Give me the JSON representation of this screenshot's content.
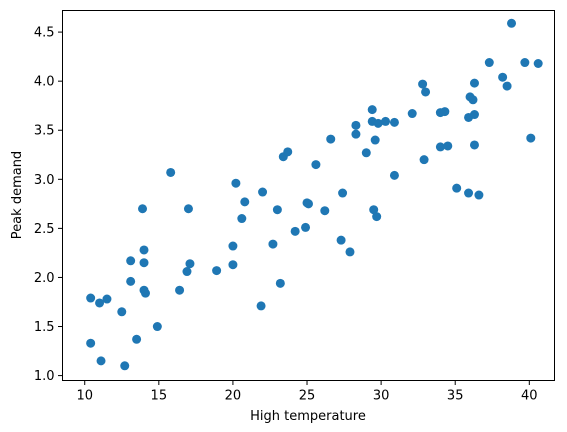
{
  "chart_data": {
    "type": "scatter",
    "title": "",
    "xlabel": "High temperature",
    "ylabel": "Peak demand",
    "xlim": [
      8.5,
      41.7
    ],
    "ylim": [
      0.95,
      4.72
    ],
    "xticks": [
      10,
      15,
      20,
      25,
      30,
      35,
      40
    ],
    "yticks": [
      1.0,
      1.5,
      2.0,
      2.5,
      3.0,
      3.5,
      4.0,
      4.5
    ],
    "xtick_labels": [
      "10",
      "15",
      "20",
      "25",
      "30",
      "35",
      "40"
    ],
    "ytick_labels": [
      "1.0",
      "1.5",
      "2.0",
      "2.5",
      "3.0",
      "3.5",
      "4.0",
      "4.5"
    ],
    "grid": false,
    "marker_color": "#1f77b4",
    "series": [
      {
        "points": [
          [
            10.4,
            1.79
          ],
          [
            10.4,
            1.33
          ],
          [
            11.0,
            1.74
          ],
          [
            11.1,
            1.15
          ],
          [
            11.5,
            1.78
          ],
          [
            12.5,
            1.65
          ],
          [
            12.7,
            1.1
          ],
          [
            13.1,
            2.17
          ],
          [
            13.1,
            1.96
          ],
          [
            13.5,
            1.37
          ],
          [
            13.9,
            2.7
          ],
          [
            14.0,
            2.28
          ],
          [
            14.0,
            2.15
          ],
          [
            14.0,
            1.87
          ],
          [
            14.1,
            1.84
          ],
          [
            14.9,
            1.5
          ],
          [
            15.8,
            3.07
          ],
          [
            16.4,
            1.87
          ],
          [
            16.9,
            2.06
          ],
          [
            17.0,
            2.7
          ],
          [
            17.1,
            2.14
          ],
          [
            18.9,
            2.07
          ],
          [
            20.0,
            2.32
          ],
          [
            20.0,
            2.13
          ],
          [
            20.2,
            2.96
          ],
          [
            20.6,
            2.6
          ],
          [
            20.8,
            2.77
          ],
          [
            21.9,
            1.71
          ],
          [
            22.0,
            2.87
          ],
          [
            22.7,
            2.34
          ],
          [
            23.0,
            2.69
          ],
          [
            23.2,
            1.94
          ],
          [
            23.4,
            3.23
          ],
          [
            23.7,
            3.28
          ],
          [
            24.2,
            2.47
          ],
          [
            24.9,
            2.51
          ],
          [
            25.0,
            2.76
          ],
          [
            25.1,
            2.75
          ],
          [
            25.6,
            3.15
          ],
          [
            26.2,
            2.68
          ],
          [
            26.6,
            3.41
          ],
          [
            27.3,
            2.38
          ],
          [
            27.4,
            2.86
          ],
          [
            27.9,
            2.26
          ],
          [
            28.3,
            3.55
          ],
          [
            28.3,
            3.46
          ],
          [
            29.0,
            3.27
          ],
          [
            29.4,
            3.71
          ],
          [
            29.4,
            3.59
          ],
          [
            29.5,
            2.69
          ],
          [
            29.6,
            3.4
          ],
          [
            29.7,
            2.62
          ],
          [
            29.8,
            3.57
          ],
          [
            30.3,
            3.59
          ],
          [
            30.9,
            3.58
          ],
          [
            30.9,
            3.04
          ],
          [
            32.1,
            3.67
          ],
          [
            32.8,
            3.97
          ],
          [
            32.9,
            3.2
          ],
          [
            33.0,
            3.89
          ],
          [
            34.0,
            3.68
          ],
          [
            34.0,
            3.33
          ],
          [
            34.3,
            3.69
          ],
          [
            34.5,
            3.34
          ],
          [
            35.1,
            2.91
          ],
          [
            35.9,
            3.63
          ],
          [
            35.9,
            2.86
          ],
          [
            36.0,
            3.84
          ],
          [
            36.2,
            3.81
          ],
          [
            36.3,
            3.98
          ],
          [
            36.3,
            3.66
          ],
          [
            36.3,
            3.35
          ],
          [
            36.6,
            2.84
          ],
          [
            37.3,
            4.19
          ],
          [
            38.2,
            4.04
          ],
          [
            38.5,
            3.95
          ],
          [
            38.8,
            4.59
          ],
          [
            39.7,
            4.19
          ],
          [
            40.1,
            3.42
          ],
          [
            40.6,
            4.18
          ]
        ]
      }
    ]
  }
}
